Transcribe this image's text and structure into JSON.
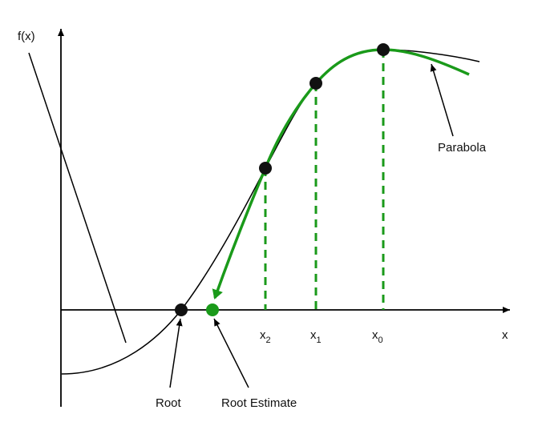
{
  "axes": {
    "y_label": "f(x)",
    "x_label": "x"
  },
  "ticks": [
    {
      "base": "x",
      "sub": "2"
    },
    {
      "base": "x",
      "sub": "1"
    },
    {
      "base": "x",
      "sub": "0"
    }
  ],
  "annotations": {
    "parabola": "Parabola",
    "root": "Root",
    "root_estimate": "Root Estimate"
  },
  "colors": {
    "curve": "#000000",
    "parabola": "#1a9a1a",
    "point": "#111111",
    "estimate": "#1a9a1a"
  }
}
